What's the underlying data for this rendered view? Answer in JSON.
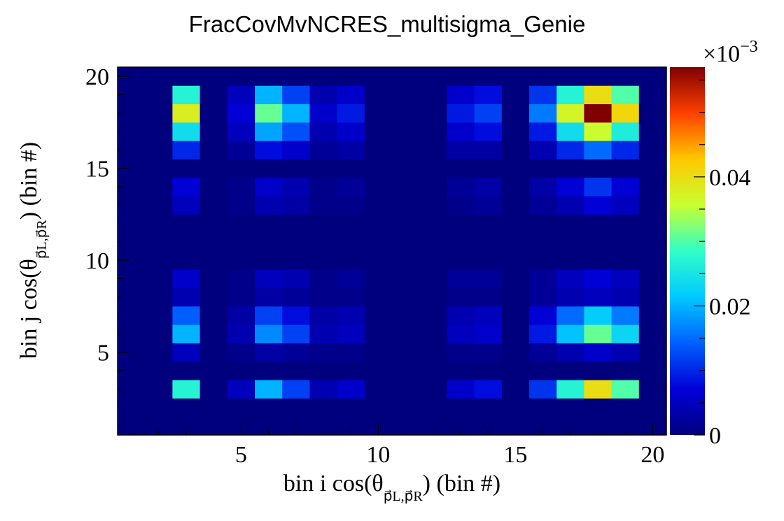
{
  "chart_data": {
    "type": "heatmap",
    "title": "FracCovMvNCRES_multisigma_Genie",
    "xlabel": {
      "prefix": "bin i cos(θ",
      "sub": "p⃗L,p⃗R",
      "suffix": ") (bin #)"
    },
    "ylabel": {
      "prefix": "bin j cos(θ",
      "sub": "p⃗L,p⃗R",
      "suffix": ") (bin #)"
    },
    "x_range": [
      0.5,
      20.5
    ],
    "y_range": [
      0.5,
      20.5
    ],
    "x_ticks": [
      5,
      10,
      15,
      20
    ],
    "y_ticks": [
      5,
      10,
      15,
      20
    ],
    "colorbar": {
      "range": [
        0,
        0.057
      ],
      "ticks": [
        0,
        0.02,
        0.04
      ],
      "tick_labels": [
        "0",
        "0.02",
        "0.04"
      ],
      "exponent_label": "×10",
      "exponent_power": "−3",
      "colors": [
        "#00007f",
        "#0000d8",
        "#0060ff",
        "#00c8ff",
        "#30ffc8",
        "#c8ff30",
        "#ffc800",
        "#ff4000",
        "#7f0000"
      ]
    },
    "values": [
      [
        0,
        0,
        0,
        0,
        0,
        0,
        0,
        0,
        0,
        0,
        0,
        0,
        0,
        0,
        0,
        0,
        0,
        0,
        0,
        0
      ],
      [
        0,
        0,
        0,
        0,
        0,
        0,
        0,
        0,
        0,
        0,
        0,
        0,
        0,
        0,
        0,
        0,
        0,
        0,
        0,
        0
      ],
      [
        0,
        0,
        0.027,
        0,
        0.005,
        0.02,
        0.012,
        0.004,
        0.006,
        0,
        0,
        0,
        0.006,
        0.008,
        0,
        0.011,
        0.027,
        0.04,
        0.03,
        0
      ],
      [
        0,
        0,
        0,
        0,
        0,
        0,
        0,
        0,
        0,
        0,
        0,
        0,
        0,
        0,
        0,
        0,
        0,
        0,
        0,
        0
      ],
      [
        0,
        0,
        0.005,
        0,
        0.001,
        0.003,
        0.002,
        0.001,
        0.001,
        0,
        0,
        0,
        0.001,
        0.001,
        0,
        0.002,
        0.004,
        0.006,
        0.004,
        0
      ],
      [
        0,
        0,
        0.02,
        0,
        0.004,
        0.017,
        0.012,
        0.004,
        0.005,
        0,
        0,
        0,
        0.005,
        0.006,
        0,
        0.009,
        0.021,
        0.031,
        0.023,
        0
      ],
      [
        0,
        0,
        0.014,
        0,
        0.003,
        0.012,
        0.008,
        0.003,
        0.004,
        0,
        0,
        0,
        0.004,
        0.005,
        0,
        0.007,
        0.015,
        0.022,
        0.016,
        0
      ],
      [
        0,
        0,
        0.004,
        0,
        0.001,
        0.003,
        0.002,
        0.001,
        0.001,
        0,
        0,
        0,
        0.001,
        0.001,
        0,
        0.002,
        0.004,
        0.005,
        0.004,
        0
      ],
      [
        0,
        0,
        0.006,
        0,
        0.001,
        0.005,
        0.004,
        0.001,
        0.002,
        0,
        0,
        0,
        0.002,
        0.002,
        0,
        0.002,
        0.005,
        0.007,
        0.005,
        0
      ],
      [
        0,
        0,
        0,
        0,
        0,
        0,
        0,
        0,
        0,
        0,
        0,
        0,
        0,
        0,
        0,
        0,
        0,
        0,
        0,
        0
      ],
      [
        0,
        0,
        0,
        0,
        0,
        0,
        0,
        0,
        0,
        0,
        0,
        0,
        0,
        0,
        0,
        0,
        0,
        0,
        0,
        0
      ],
      [
        0,
        0,
        0,
        0,
        0,
        0,
        0,
        0,
        0,
        0,
        0,
        0,
        0,
        0,
        0,
        0,
        0,
        0,
        0,
        0
      ],
      [
        0,
        0,
        0.005,
        0,
        0.001,
        0.004,
        0.003,
        0.001,
        0.001,
        0,
        0,
        0,
        0.001,
        0.002,
        0,
        0.002,
        0.004,
        0.007,
        0.005,
        0
      ],
      [
        0,
        0,
        0.007,
        0,
        0.001,
        0.006,
        0.004,
        0.001,
        0.002,
        0,
        0,
        0,
        0.002,
        0.003,
        0,
        0.003,
        0.007,
        0.011,
        0.007,
        0
      ],
      [
        0,
        0,
        0,
        0,
        0,
        0,
        0,
        0,
        0,
        0,
        0,
        0,
        0,
        0,
        0,
        0,
        0,
        0,
        0,
        0
      ],
      [
        0,
        0,
        0.01,
        0,
        0.002,
        0.008,
        0.006,
        0.002,
        0.003,
        0,
        0,
        0,
        0.003,
        0.003,
        0,
        0.004,
        0.01,
        0.015,
        0.01,
        0
      ],
      [
        0,
        0,
        0.024,
        0,
        0.005,
        0.019,
        0.013,
        0.004,
        0.006,
        0,
        0,
        0,
        0.006,
        0.008,
        0,
        0.009,
        0.024,
        0.036,
        0.026,
        0
      ],
      [
        0,
        0,
        0.038,
        0,
        0.007,
        0.031,
        0.02,
        0.006,
        0.009,
        0,
        0,
        0,
        0.009,
        0.012,
        0,
        0.016,
        0.037,
        0.057,
        0.041,
        0
      ],
      [
        0,
        0,
        0.027,
        0,
        0.005,
        0.02,
        0.012,
        0.004,
        0.006,
        0,
        0,
        0,
        0.006,
        0.008,
        0,
        0.011,
        0.027,
        0.04,
        0.03,
        0
      ],
      [
        0,
        0,
        0,
        0,
        0,
        0,
        0,
        0,
        0,
        0,
        0,
        0,
        0,
        0,
        0,
        0,
        0,
        0,
        0,
        0
      ]
    ]
  }
}
